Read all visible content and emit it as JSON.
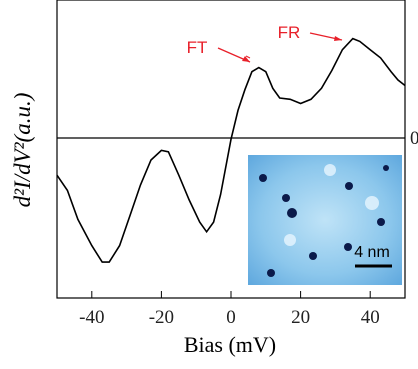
{
  "chart_data": {
    "type": "line",
    "x_label": "Bias (mV)",
    "y_label": "d²I/dV²(a.u.)",
    "annotations": [
      "FT",
      "FR"
    ],
    "inset_scale_label": "4 nm",
    "xlim": [
      -50,
      50
    ],
    "xticks": [
      -40,
      -20,
      0,
      20,
      40
    ],
    "ylim": [
      -1.16,
      1
    ],
    "yticks": [
      0
    ],
    "x": [
      -50,
      -47,
      -44,
      -40,
      -37,
      -35,
      -32,
      -29,
      -26,
      -23,
      -20,
      -18,
      -15,
      -12,
      -9,
      -7,
      -5,
      -3,
      0,
      2,
      4,
      6,
      8,
      10,
      12,
      14,
      17,
      20,
      23,
      26,
      29,
      32,
      35,
      37,
      40,
      43,
      46,
      48,
      50
    ],
    "series": [
      {
        "color": "#000000",
        "values": [
          -0.27,
          -0.38,
          -0.59,
          -0.78,
          -0.9,
          -0.9,
          -0.78,
          -0.56,
          -0.34,
          -0.16,
          -0.09,
          -0.1,
          -0.27,
          -0.45,
          -0.61,
          -0.68,
          -0.61,
          -0.41,
          -0.01,
          0.2,
          0.35,
          0.48,
          0.51,
          0.48,
          0.36,
          0.29,
          0.28,
          0.25,
          0.28,
          0.36,
          0.49,
          0.64,
          0.72,
          0.7,
          0.64,
          0.58,
          0.48,
          0.42,
          0.38
        ]
      }
    ]
  }
}
